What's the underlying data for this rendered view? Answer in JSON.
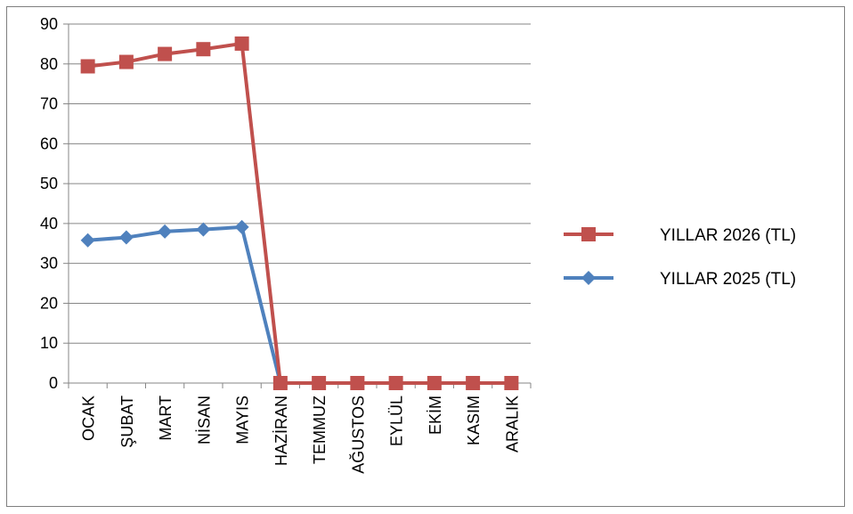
{
  "chart_data": {
    "type": "line",
    "categories": [
      "OCAK",
      "ŞUBAT",
      "MART",
      "NİSAN",
      "MAYIS",
      "HAZİRAN",
      "TEMMUZ",
      "AĞUSTOS",
      "EYLÜL",
      "EKİM",
      "KASIM",
      "ARALIK"
    ],
    "series": [
      {
        "name": "YILLAR 2026 (TL)",
        "color": "#c0504d",
        "marker": "square",
        "values": [
          79.4,
          80.5,
          82.5,
          83.7,
          85.1,
          0,
          0,
          0,
          0,
          0,
          0,
          0
        ]
      },
      {
        "name": "YILLAR 2025 (TL)",
        "color": "#4f81bd",
        "marker": "diamond",
        "values": [
          35.8,
          36.5,
          38.0,
          38.5,
          39.1,
          0,
          0,
          0,
          0,
          0,
          0,
          0
        ]
      }
    ],
    "ylim": [
      0,
      90
    ],
    "yticks": [
      0,
      10,
      20,
      30,
      40,
      50,
      60,
      70,
      80,
      90
    ],
    "grid": true,
    "legend": "right"
  }
}
